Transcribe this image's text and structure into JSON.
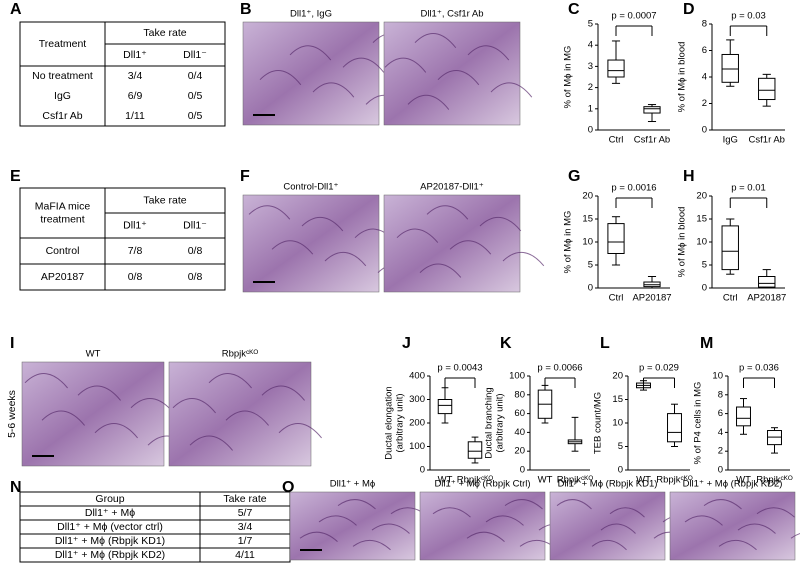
{
  "panel_labels": [
    "A",
    "B",
    "C",
    "D",
    "E",
    "F",
    "G",
    "H",
    "I",
    "J",
    "K",
    "L",
    "M",
    "N",
    "O"
  ],
  "table_a": {
    "header": [
      "Treatment",
      "Take rate"
    ],
    "subheader": [
      "Dll1⁺",
      "Dll1⁻"
    ],
    "rows": [
      [
        "No treatment",
        "3/4",
        "0/4"
      ],
      [
        "IgG",
        "6/9",
        "0/5"
      ],
      [
        "Csf1r Ab",
        "1/11",
        "0/5"
      ]
    ]
  },
  "table_e": {
    "header": [
      [
        "MaFIA mice",
        "treatment"
      ],
      "Take rate"
    ],
    "subheader": [
      "Dll1⁺",
      "Dll1⁻"
    ],
    "rows": [
      [
        "Control",
        "7/8",
        "0/8"
      ],
      [
        "AP20187",
        "0/8",
        "0/8"
      ]
    ]
  },
  "table_n": {
    "header": [
      "Group",
      "Take rate"
    ],
    "rows": [
      [
        "Dll1⁺ + Mϕ",
        "5/7"
      ],
      [
        "Dll1⁺ + Mϕ (vector ctrl)",
        "3/4"
      ],
      [
        "Dll1⁺ + Mϕ (Rbpjk KD1)",
        "1/7"
      ],
      [
        "Dll1⁺ + Mϕ (Rbpjk KD2)",
        "4/11"
      ]
    ]
  },
  "image_captions": {
    "B": [
      "Dll1⁺, IgG",
      "Dll1⁺, Csf1r Ab"
    ],
    "F": [
      "Control-Dll1⁺",
      "AP20187-Dll1⁺"
    ],
    "I": [
      "WT",
      "Rbpjkᶜᴷᴼ"
    ],
    "O": [
      "Dll1⁺ + Mϕ",
      "Dll1⁺ + Mϕ (Rbpjk Ctrl)",
      "Dll1⁺ + Mϕ (Rbpjk KD1)",
      "Dll1⁺ + Mϕ (Rbpjk KD2)"
    ]
  },
  "side_label": "5-6 weeks",
  "chart_data": [
    {
      "type": "box",
      "annotation": "p = 0.0007",
      "ylabel": [
        "% of Mϕ in MG"
      ],
      "categories": [
        "Ctrl",
        "Csf1r Ab"
      ],
      "color": "#000000",
      "boxes": [
        {
          "min": 2.2,
          "q1": 2.5,
          "median": 2.8,
          "q3": 3.3,
          "max": 4.2
        },
        {
          "min": 0.4,
          "q1": 0.8,
          "median": 1.0,
          "q3": 1.1,
          "max": 1.2
        }
      ],
      "ylim": [
        0,
        5
      ],
      "yticks": [
        0,
        1,
        2,
        3,
        4,
        5
      ]
    },
    {
      "type": "box",
      "annotation": "p = 0.03",
      "ylabel": [
        "% of Mϕ in blood"
      ],
      "categories": [
        "IgG",
        "Csf1r Ab"
      ],
      "color": "#000000",
      "boxes": [
        {
          "min": 3.3,
          "q1": 3.6,
          "median": 4.6,
          "q3": 5.7,
          "max": 6.8
        },
        {
          "min": 1.8,
          "q1": 2.3,
          "median": 3.0,
          "q3": 3.9,
          "max": 4.2
        }
      ],
      "ylim": [
        0,
        8
      ],
      "yticks": [
        0,
        2,
        4,
        6,
        8
      ]
    },
    {
      "type": "box",
      "annotation": "p = 0.0016",
      "ylabel": [
        "% of Mϕ in MG"
      ],
      "categories": [
        "Ctrl",
        "AP20187"
      ],
      "color": "#000000",
      "boxes": [
        {
          "min": 5,
          "q1": 7.5,
          "median": 10,
          "q3": 14,
          "max": 15.5
        },
        {
          "min": 0,
          "q1": 0.3,
          "median": 0.7,
          "q3": 1.3,
          "max": 2.5
        }
      ],
      "ylim": [
        0,
        20
      ],
      "yticks": [
        0,
        5,
        10,
        15,
        20
      ]
    },
    {
      "type": "box",
      "annotation": "p = 0.01",
      "ylabel": [
        "% of Mϕ in blood"
      ],
      "categories": [
        "Ctrl",
        "AP20187"
      ],
      "color": "#000000",
      "boxes": [
        {
          "min": 3,
          "q1": 4,
          "median": 8,
          "q3": 13.5,
          "max": 15
        },
        {
          "min": 0,
          "q1": 0.2,
          "median": 1,
          "q3": 2.5,
          "max": 4
        }
      ],
      "ylim": [
        0,
        20
      ],
      "yticks": [
        0,
        5,
        10,
        15,
        20
      ]
    },
    {
      "type": "box",
      "annotation": "p = 0.0043",
      "ylabel": [
        "Ductal elongation",
        "(arbitrary unit)"
      ],
      "categories": [
        "WT",
        "Rbpjkᶜᴷᴼ"
      ],
      "color": "#000000",
      "boxes": [
        {
          "min": 200,
          "q1": 240,
          "median": 275,
          "q3": 300,
          "max": 350
        },
        {
          "min": 30,
          "q1": 50,
          "median": 80,
          "q3": 120,
          "max": 140
        }
      ],
      "ylim": [
        0,
        400
      ],
      "yticks": [
        0,
        100,
        200,
        300,
        400
      ]
    },
    {
      "type": "box",
      "annotation": "p = 0.0066",
      "ylabel": [
        "Ductal branching",
        "(arbitrary unit)"
      ],
      "categories": [
        "WT",
        "Rbpjkᶜᴷᴼ"
      ],
      "color": "#000000",
      "boxes": [
        {
          "min": 50,
          "q1": 55,
          "median": 70,
          "q3": 85,
          "max": 90
        },
        {
          "min": 20,
          "q1": 28,
          "median": 30,
          "q3": 32,
          "max": 56
        }
      ],
      "ylim": [
        0,
        100
      ],
      "yticks": [
        0,
        20,
        40,
        60,
        80,
        100
      ]
    },
    {
      "type": "box",
      "annotation": "p = 0.029",
      "ylabel": [
        "TEB count/MG"
      ],
      "categories": [
        "WT",
        "Rbpjkᶜᴷᴼ"
      ],
      "color": "#000000",
      "boxes": [
        {
          "min": 17,
          "q1": 17.5,
          "median": 18,
          "q3": 18.5,
          "max": 19
        },
        {
          "min": 5,
          "q1": 6,
          "median": 8,
          "q3": 12,
          "max": 14
        }
      ],
      "ylim": [
        0,
        20
      ],
      "yticks": [
        0,
        5,
        10,
        15,
        20
      ]
    },
    {
      "type": "box",
      "annotation": "p = 0.036",
      "ylabel": [
        "% of P4 cells in MG"
      ],
      "categories": [
        "WT",
        "Rbpjkᶜᴷᴼ"
      ],
      "color": "#000000",
      "boxes": [
        {
          "min": 3.8,
          "q1": 4.7,
          "median": 5.5,
          "q3": 6.7,
          "max": 7.6
        },
        {
          "min": 1.8,
          "q1": 2.7,
          "median": 3.5,
          "q3": 4.2,
          "max": 4.5
        }
      ],
      "ylim": [
        0,
        10
      ],
      "yticks": [
        0,
        2,
        4,
        6,
        8,
        10
      ]
    }
  ]
}
